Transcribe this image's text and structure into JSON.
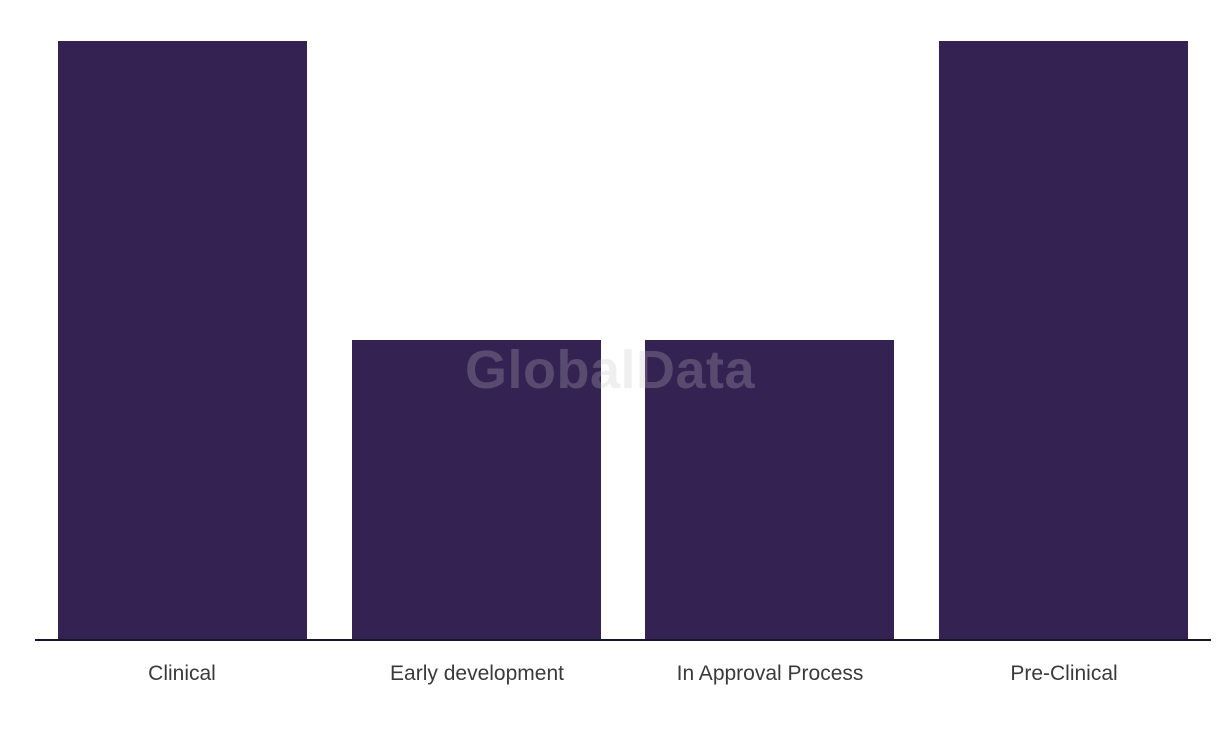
{
  "watermark": {
    "text": "GlobalData"
  },
  "chart_data": {
    "type": "bar",
    "categories": [
      "Clinical",
      "Early development",
      "In Approval Process",
      "Pre-Clinical"
    ],
    "values": [
      2,
      1,
      1,
      2
    ],
    "title": "",
    "xlabel": "",
    "ylabel": "",
    "ylim": [
      0,
      2
    ],
    "grid": false,
    "legend": false,
    "bar_color": "#342253",
    "axis_line_color": "#16152e",
    "label_color": "#3a3a3a",
    "watermark_color": "rgba(195,195,195,0.26)",
    "background_color": "#ffffff"
  }
}
